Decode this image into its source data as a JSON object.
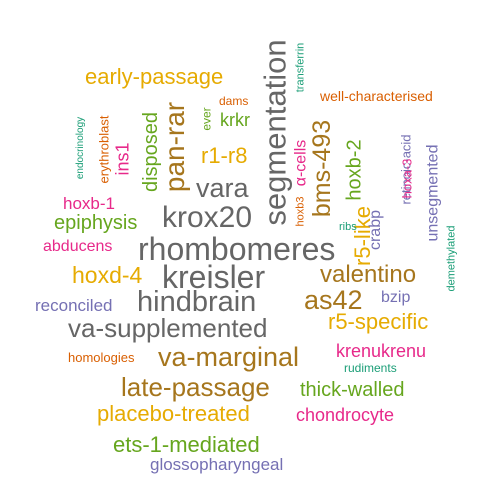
{
  "palette": {
    "orange": "#D95F02",
    "purple": "#7570B3",
    "magenta": "#E7298A",
    "green": "#66A61E",
    "mustard": "#E6AB02",
    "brown": "#A6761D",
    "gray": "#666666",
    "teal": "#1B9E77"
  },
  "words": [
    {
      "text": "segmentation",
      "color": "gray"
    },
    {
      "text": "rhombomeres",
      "color": "gray"
    },
    {
      "text": "kreisler",
      "color": "gray"
    },
    {
      "text": "hindbrain",
      "color": "gray"
    },
    {
      "text": "krox20",
      "color": "gray"
    },
    {
      "text": "va-supplemented",
      "color": "gray"
    },
    {
      "text": "vara",
      "color": "gray"
    },
    {
      "text": "as42",
      "color": "brown"
    },
    {
      "text": "pan-rar",
      "color": "brown"
    },
    {
      "text": "va-marginal",
      "color": "brown"
    },
    {
      "text": "late-passage",
      "color": "brown"
    },
    {
      "text": "valentino",
      "color": "brown"
    },
    {
      "text": "bms-493",
      "color": "brown"
    },
    {
      "text": "early-passage",
      "color": "mustard"
    },
    {
      "text": "hoxd-4",
      "color": "mustard"
    },
    {
      "text": "r5-specific",
      "color": "mustard"
    },
    {
      "text": "placebo-treated",
      "color": "mustard"
    },
    {
      "text": "r1-r8",
      "color": "mustard"
    },
    {
      "text": "r5-like",
      "color": "mustard"
    },
    {
      "text": "ets-1-mediated",
      "color": "green"
    },
    {
      "text": "thick-walled",
      "color": "green"
    },
    {
      "text": "epiphysis",
      "color": "green"
    },
    {
      "text": "hoxb-2",
      "color": "green"
    },
    {
      "text": "disposed",
      "color": "green"
    },
    {
      "text": "krkr",
      "color": "green"
    },
    {
      "text": "ever",
      "color": "green"
    },
    {
      "text": "glossopharyngeal",
      "color": "purple"
    },
    {
      "text": "reconciled",
      "color": "purple"
    },
    {
      "text": "unsegmented",
      "color": "purple"
    },
    {
      "text": "bzip",
      "color": "purple"
    },
    {
      "text": "crabp",
      "color": "purple"
    },
    {
      "text": "retinoic-acid",
      "color": "purple"
    },
    {
      "text": "krenukrenu",
      "color": "magenta"
    },
    {
      "text": "chondrocyte",
      "color": "magenta"
    },
    {
      "text": "abducens",
      "color": "magenta"
    },
    {
      "text": "hoxb-1",
      "color": "magenta"
    },
    {
      "text": "ins1",
      "color": "magenta"
    },
    {
      "text": "hoxa-3",
      "color": "magenta"
    },
    {
      "text": "α-cells",
      "color": "magenta"
    },
    {
      "text": "well-characterised",
      "color": "orange"
    },
    {
      "text": "homologies",
      "color": "orange"
    },
    {
      "text": "erythroblast",
      "color": "orange"
    },
    {
      "text": "dams",
      "color": "orange"
    },
    {
      "text": "hoxb3",
      "color": "orange"
    },
    {
      "text": "ribs",
      "color": "teal"
    },
    {
      "text": "rudiments",
      "color": "teal"
    },
    {
      "text": "demethylated",
      "color": "teal"
    },
    {
      "text": "transferrin",
      "color": "teal"
    },
    {
      "text": "endocrinology",
      "color": "teal"
    }
  ]
}
